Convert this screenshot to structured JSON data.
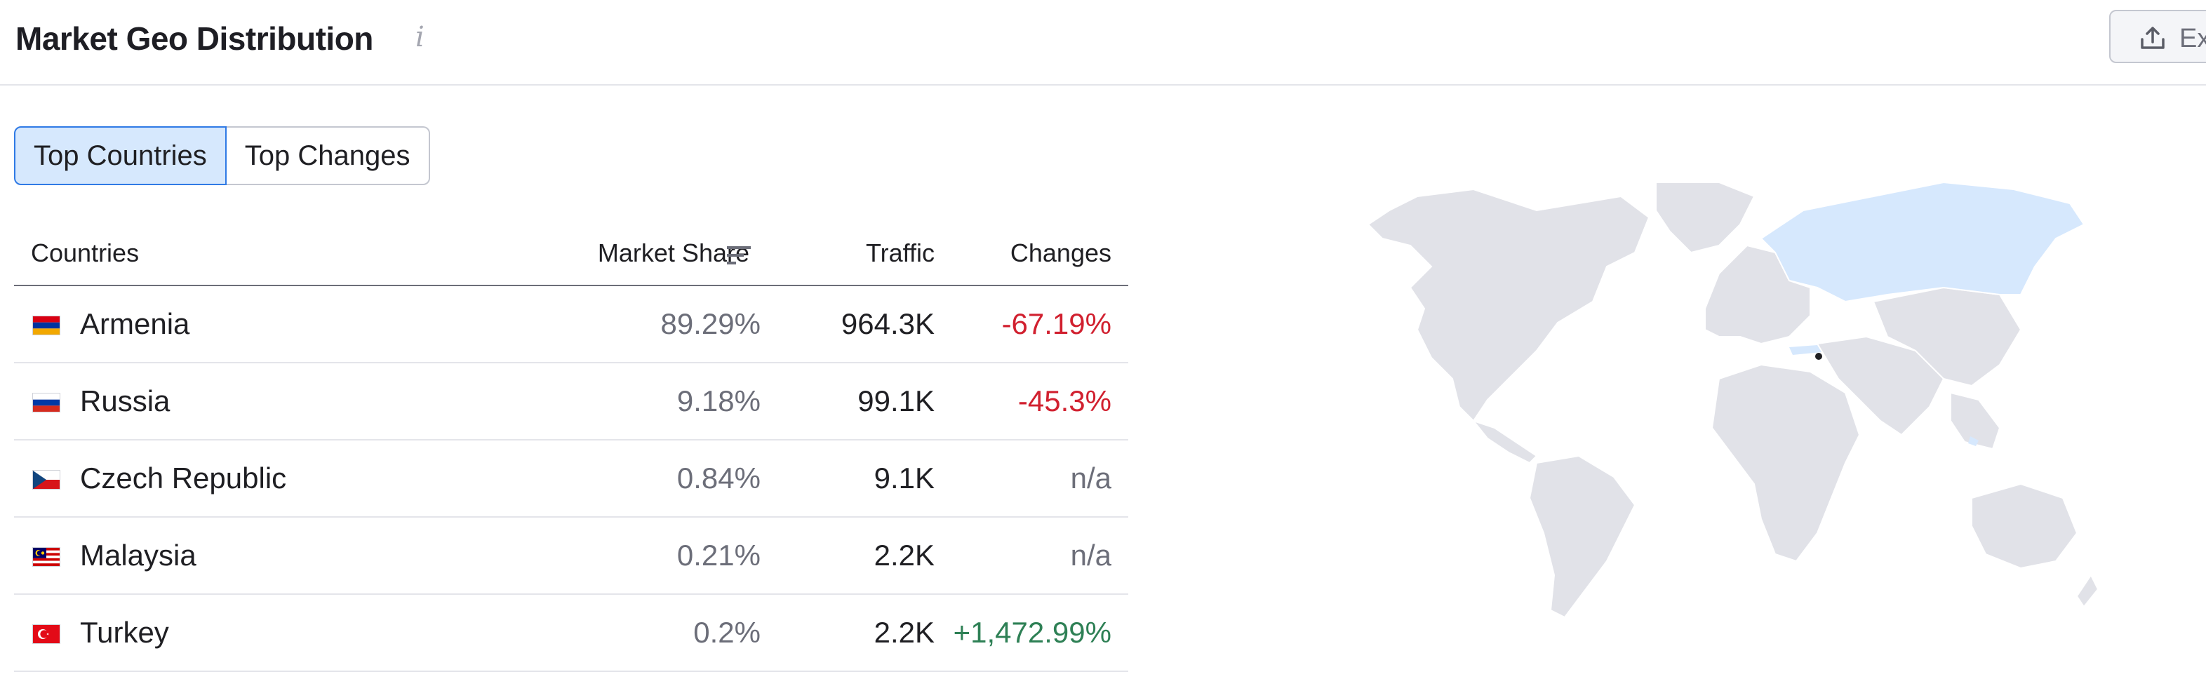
{
  "header": {
    "title": "Market Geo Distribution",
    "info_glyph": "i",
    "export_label": "Ex"
  },
  "tabs": [
    {
      "label": "Top Countries",
      "active": true
    },
    {
      "label": "Top Changes",
      "active": false
    }
  ],
  "table": {
    "columns": {
      "country": "Countries",
      "share": "Market Share",
      "traffic": "Traffic",
      "changes": "Changes"
    },
    "rows": [
      {
        "country": "Armenia",
        "share": "89.29%",
        "traffic": "964.3K",
        "change": "-67.19%",
        "trend": "down"
      },
      {
        "country": "Russia",
        "share": "9.18%",
        "traffic": "99.1K",
        "change": "-45.3%",
        "trend": "down"
      },
      {
        "country": "Czech Republic",
        "share": "0.84%",
        "traffic": "9.1K",
        "change": "n/a",
        "trend": "none"
      },
      {
        "country": "Malaysia",
        "share": "0.21%",
        "traffic": "2.2K",
        "change": "n/a",
        "trend": "none"
      },
      {
        "country": "Turkey",
        "share": "0.2%",
        "traffic": "2.2K",
        "change": "+1,472.99%",
        "trend": "up"
      }
    ]
  },
  "colors": {
    "down": "#d1202f",
    "up": "#2e8055",
    "neutral": "#6c6e79",
    "map_land": "#e1e2e8",
    "map_highlight": "#d6e8fd",
    "accent": "#2f7ae5"
  },
  "icons": {
    "info": "info-icon",
    "export": "upload-icon",
    "sort": "sort-descending-icon"
  }
}
